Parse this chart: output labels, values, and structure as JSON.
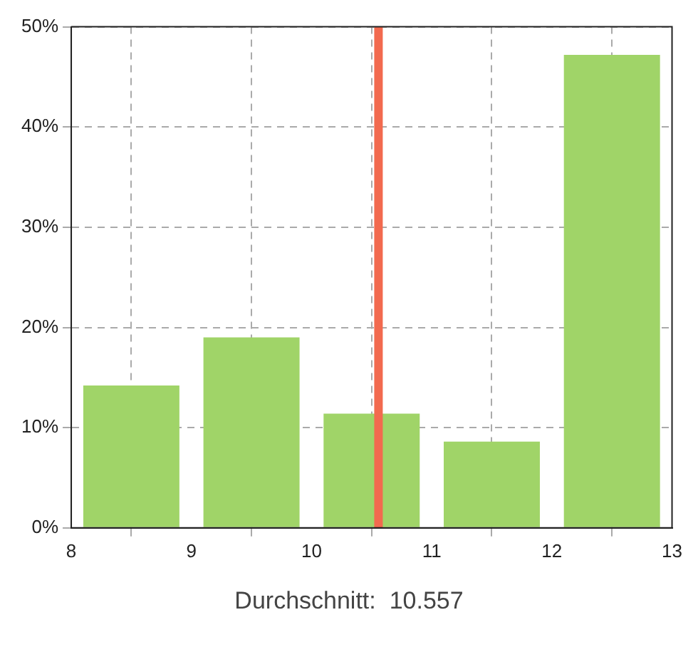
{
  "chart_data": {
    "type": "histogram",
    "bins": [
      8,
      9,
      10,
      11,
      12,
      13
    ],
    "values": [
      14.2,
      19,
      11.4,
      8.6,
      47.2
    ],
    "color": "#a0d468",
    "xlim": [
      8,
      13
    ],
    "xticks": [
      8,
      9,
      10,
      11,
      12,
      13
    ],
    "ylim": [
      0,
      50
    ],
    "yticks": [
      {
        "value": 0,
        "label": "0%"
      },
      {
        "value": 10,
        "label": "10%"
      },
      {
        "value": 20,
        "label": "20%"
      },
      {
        "value": 30,
        "label": "30%"
      },
      {
        "value": 40,
        "label": "40%"
      },
      {
        "value": 50,
        "label": "50%"
      }
    ],
    "grid": true,
    "ref_lines": [
      {
        "axis": "x",
        "value": 10.557,
        "color": "#f26a4f"
      }
    ],
    "annotations": [
      "Durchschnitt:  10.557"
    ]
  }
}
